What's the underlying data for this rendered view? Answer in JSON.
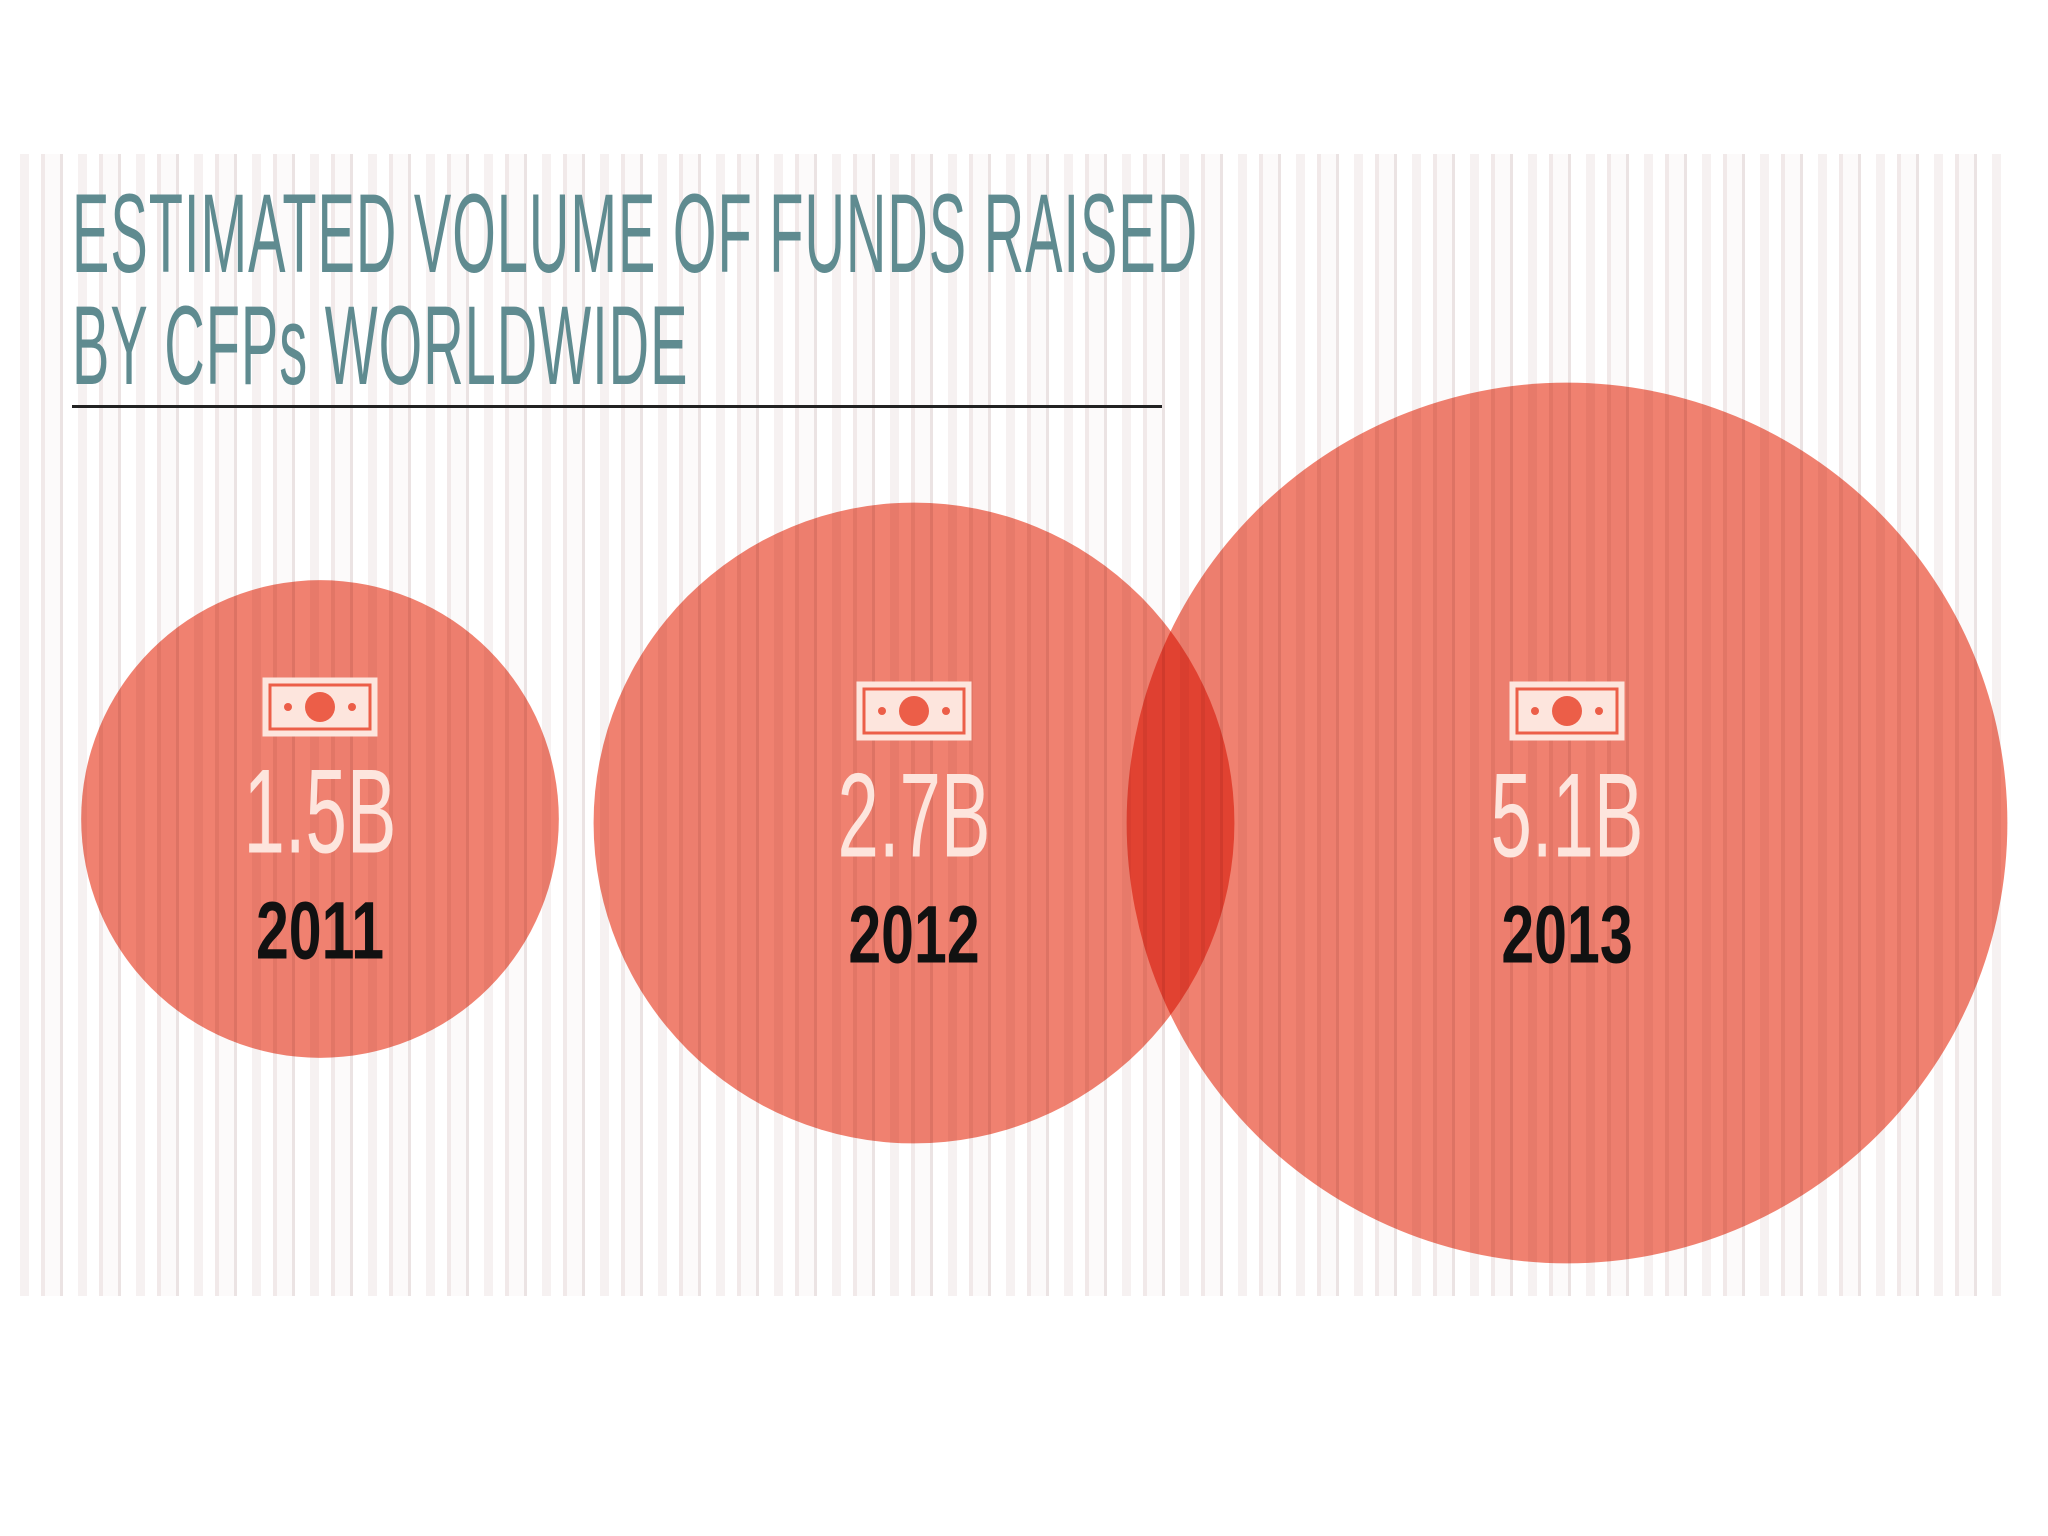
{
  "chart_data": {
    "type": "bubble",
    "title": "ESTIMATED VOLUME OF FUNDS RAISED\nBY CFPs WORLDWIDE",
    "categories": [
      "2011",
      "2012",
      "2013"
    ],
    "values": [
      1.5,
      2.7,
      5.1
    ],
    "value_labels": [
      "1.5B",
      "2.7B",
      "5.1B"
    ],
    "color": "#ec5e48"
  }
}
